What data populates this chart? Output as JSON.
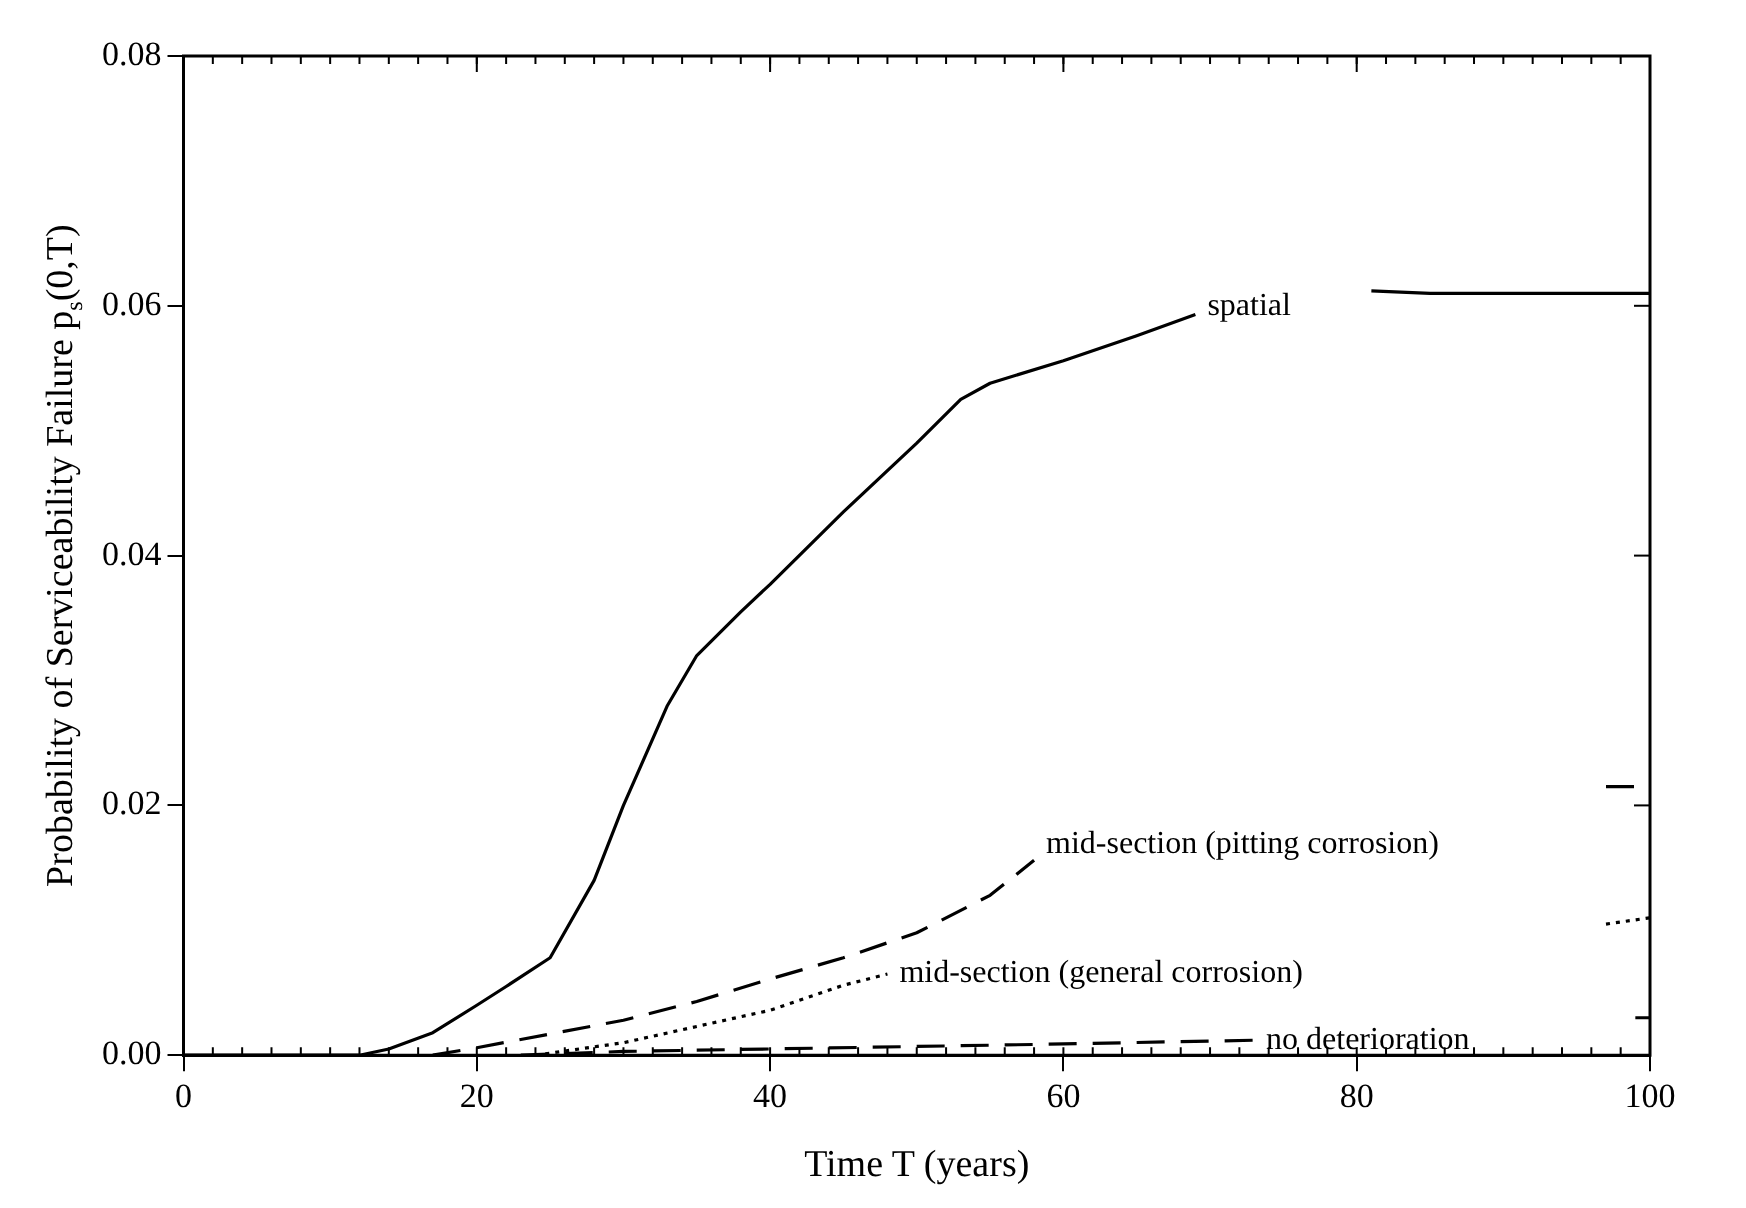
{
  "chart_data": {
    "type": "line",
    "xlabel": "Time T (years)",
    "ylabel": "Probability of Serviceability Failure p$_{s}$(0,T)",
    "xlim": [
      0,
      100
    ],
    "xticks": [
      0,
      20,
      40,
      60,
      80,
      100
    ],
    "ylim": [
      0,
      0.08
    ],
    "yticks": [
      {
        "value": 0,
        "label": "0.00"
      },
      {
        "value": 0.02,
        "label": "0.02"
      },
      {
        "value": 0.04,
        "label": "0.04"
      },
      {
        "value": 0.06,
        "label": "0.06"
      },
      {
        "value": 0.08,
        "label": "0.08"
      }
    ],
    "grid": false,
    "legend": false,
    "marker": "none",
    "series": [
      {
        "name": "spatial",
        "color": "#000000",
        "line_style": "solid",
        "x": [
          0,
          12,
          14,
          17,
          20,
          22,
          25,
          28,
          30,
          33,
          35,
          38,
          40,
          45,
          50,
          53,
          55,
          60,
          65,
          69,
          72,
          81,
          85,
          100
        ],
        "values": [
          0,
          0,
          0.0005,
          0.0018,
          0.004,
          0.0055,
          0.0078,
          0.014,
          0.02,
          0.028,
          0.032,
          0.0355,
          0.0377,
          0.0435,
          0.049,
          0.0525,
          0.0538,
          0.0556,
          0.0576,
          0.0593,
          null,
          0.0612,
          0.061,
          0.061
        ]
      },
      {
        "name": "mid-section (pitting corrosion)",
        "color": "#000000",
        "line_style": "dashed",
        "x": [
          17,
          20,
          25,
          30,
          35,
          40,
          45,
          50,
          55,
          58,
          60,
          97,
          100
        ],
        "values": [
          0,
          0.0006,
          0.0017,
          0.0028,
          0.0043,
          0.0061,
          0.0078,
          0.0098,
          0.0128,
          0.0156,
          null,
          0.0215,
          0.0215
        ]
      },
      {
        "name": "mid-section (general corrosion)",
        "color": "#000000",
        "line_style": "dotted",
        "x": [
          24,
          27,
          30,
          35,
          40,
          45,
          48,
          50,
          97,
          100
        ],
        "values": [
          0,
          0.0005,
          0.001,
          0.0023,
          0.0036,
          0.0056,
          0.0065,
          null,
          0.0105,
          0.011
        ]
      },
      {
        "name": "no deterioration",
        "color": "#000000",
        "line_style": "dashed",
        "x": [
          23,
          30,
          40,
          50,
          60,
          73,
          75,
          99,
          100
        ],
        "values": [
          0,
          0.0003,
          0.0005,
          0.0007,
          0.0009,
          0.0012,
          null,
          0.003,
          0.003
        ]
      }
    ]
  }
}
